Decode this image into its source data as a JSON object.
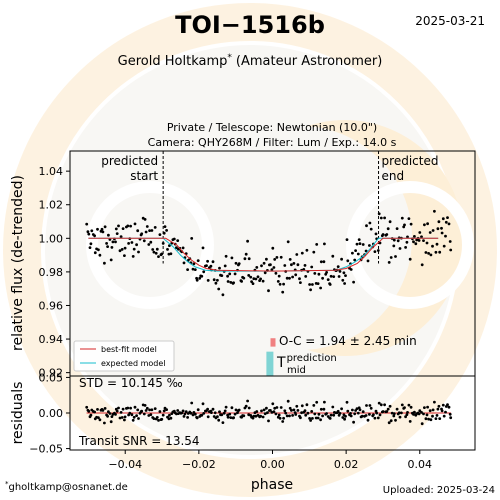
{
  "header": {
    "title": "TOI−1516b",
    "date": "2025-03-21",
    "observer": "Gerold Holtkamp",
    "observer_mark": "*",
    "observer_role": "(Amateur Astronomer)",
    "instrument_line1": "Private / Telescope: Newtonian (10.0\")",
    "instrument_line2": "Camera: QHY268M / Filter: Lum / Exp.: 14.0 s"
  },
  "footer": {
    "contact_mark": "*",
    "contact": "gholtkamp@osnanet.de",
    "uploaded": "Uploaded: 2025-03-24"
  },
  "annotations": {
    "predicted_start_line1": "predicted",
    "predicted_start_line2": "start",
    "predicted_end_line1": "predicted",
    "predicted_end_line2": "end",
    "oc_text": "O-C = 1.94 ± 2.45 min",
    "tmid_main": "T",
    "tmid_sup": "prediction",
    "tmid_sub": "mid",
    "std_text": "STD = 10.145 ‰",
    "snr_text": "Transit SNR = 13.54"
  },
  "colors": {
    "best_fit": "#d62728",
    "expected": "#17becf",
    "oc_bar": "#f08080",
    "tmid_bar": "#80d4d4",
    "points": "#000000"
  },
  "chart_data": [
    {
      "type": "scatter",
      "xlabel": "",
      "ylabel": "relative flux (de-trended)",
      "xlim": [
        -0.055,
        0.055
      ],
      "ylim": [
        0.918,
        1.052
      ],
      "yticks": [
        0.92,
        0.94,
        0.96,
        0.98,
        1.0,
        1.02,
        1.04
      ],
      "ytick_labels": [
        "0.92",
        "0.94",
        "0.96",
        "0.98",
        "1.00",
        "1.02",
        "1.04"
      ],
      "predicted_start": -0.0297,
      "predicted_end": 0.0288,
      "transit": {
        "baseline": 1.0,
        "depth": 0.0195,
        "ingress_start": -0.0297,
        "ingress_end": -0.0182,
        "egress_start": 0.0173,
        "egress_end": 0.0288
      },
      "legend": [
        "best-fit model",
        "expected model"
      ],
      "legend_position": "lower-left",
      "series": [
        {
          "name": "best-fit model",
          "x": [
            -0.05,
            -0.029,
            -0.026,
            -0.024,
            -0.022,
            -0.02,
            -0.018,
            -0.015,
            0.0,
            0.017,
            0.02,
            0.023,
            0.025,
            0.027,
            0.03,
            0.045
          ],
          "y": [
            1.0,
            1.0,
            0.996,
            0.991,
            0.987,
            0.984,
            0.982,
            0.981,
            0.9805,
            0.981,
            0.982,
            0.985,
            0.989,
            0.994,
            1.0,
            1.0
          ]
        },
        {
          "name": "expected model",
          "x": [
            -0.05,
            -0.0297,
            -0.027,
            -0.025,
            -0.023,
            -0.021,
            -0.0182,
            -0.015,
            0.0,
            0.0173,
            0.02,
            0.0225,
            0.025,
            0.027,
            0.0288,
            0.045
          ],
          "y": [
            1.0,
            1.0,
            0.995,
            0.99,
            0.986,
            0.983,
            0.981,
            0.9805,
            0.9805,
            0.981,
            0.983,
            0.986,
            0.99,
            0.995,
            1.0,
            1.0
          ]
        }
      ],
      "oc_bar": {
        "x": 0.0,
        "y_range": [
          0.9355,
          0.9405
        ]
      },
      "tmid_bar": {
        "x": -0.0003,
        "y_range": [
          0.918,
          0.9325
        ]
      }
    },
    {
      "type": "scatter",
      "xlabel": "phase",
      "ylabel": "residuals",
      "xlim": [
        -0.055,
        0.055
      ],
      "ylim": [
        -0.052,
        0.052
      ],
      "xticks": [
        -0.04,
        -0.02,
        0.0,
        0.02,
        0.04
      ],
      "xtick_labels": [
        "−0.04",
        "−0.02",
        "0.00",
        "0.02",
        "0.04"
      ],
      "yticks": [
        -0.05,
        0.0,
        0.05
      ],
      "ytick_labels": [
        "−0.05",
        "0.00",
        "0.05"
      ],
      "zero_line": 0.0
    }
  ]
}
